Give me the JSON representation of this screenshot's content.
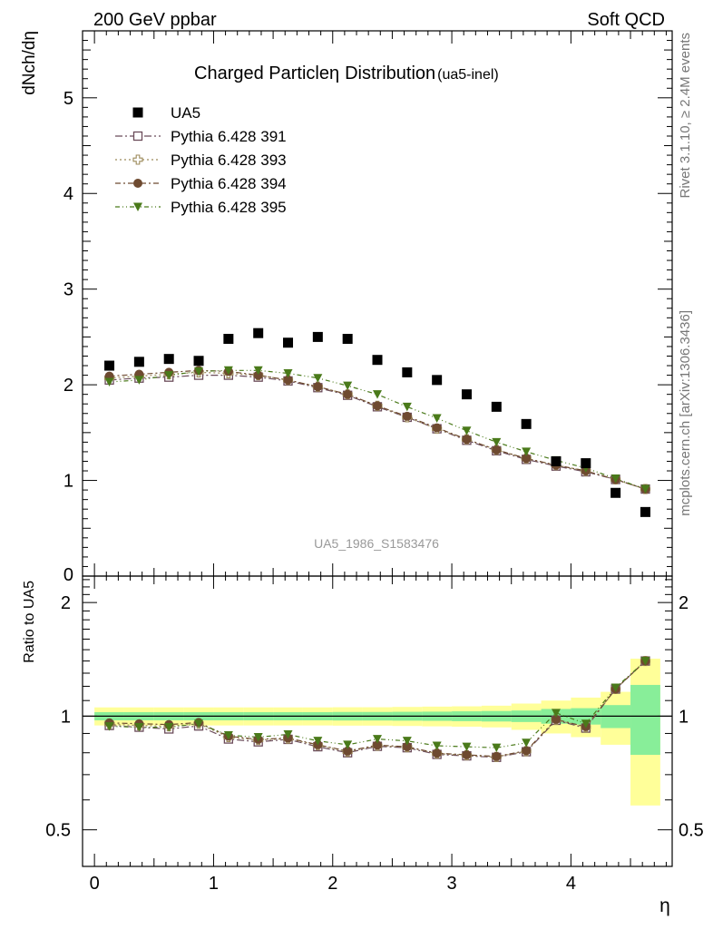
{
  "header": {
    "left": "200 GeV ppbar",
    "right": "Soft QCD",
    "side_top": "Rivet 3.1.10, ≥ 2.4M events",
    "side_bottom": "mcplots.cern.ch [arXiv:1306.3436]"
  },
  "chart_data": {
    "type": "scatter",
    "title": "Charged Particle",
    "title_symbol": "η",
    "title_suffix": "Distribution",
    "title_note": "(ua5-inel)",
    "ylabel_main": "dNch/dη",
    "ylabel_ratio": "Ratio to UA5",
    "xlabel": "η",
    "watermark": "UA5_1986_S1583476",
    "xlim": [
      -0.1,
      4.85
    ],
    "ylim_main": [
      0,
      5.7
    ],
    "ylim_ratio": [
      0.4,
      2.35
    ],
    "x_ticks": [
      "0",
      "1",
      "2",
      "3",
      "4"
    ],
    "y_ticks_main": [
      "1",
      "2",
      "3",
      "4",
      "5"
    ],
    "y_ticks_main_zero": "0",
    "y_ticks_ratio": [
      "0.5",
      "1",
      "2"
    ],
    "x": [
      0.125,
      0.375,
      0.625,
      0.875,
      1.125,
      1.375,
      1.625,
      1.875,
      2.125,
      2.375,
      2.625,
      2.875,
      3.125,
      3.375,
      3.625,
      3.875,
      4.125,
      4.375,
      4.625
    ],
    "data": {
      "name": "UA5",
      "color": "#000000",
      "values": [
        2.2,
        2.24,
        2.27,
        2.25,
        2.48,
        2.54,
        2.44,
        2.5,
        2.48,
        2.26,
        2.13,
        2.05,
        1.9,
        1.77,
        1.59,
        1.2,
        1.18,
        0.87,
        0.67
      ]
    },
    "band_edges": [
      0.0,
      0.25,
      0.5,
      0.75,
      1.0,
      1.25,
      1.5,
      1.75,
      2.0,
      2.25,
      2.5,
      2.75,
      3.0,
      3.25,
      3.5,
      3.75,
      4.0,
      4.25,
      4.5,
      4.75
    ],
    "band_inner": [
      0.025,
      0.025,
      0.025,
      0.025,
      0.025,
      0.025,
      0.025,
      0.025,
      0.026,
      0.026,
      0.027,
      0.028,
      0.03,
      0.032,
      0.035,
      0.045,
      0.05,
      0.07,
      0.21
    ],
    "band_outer": [
      0.055,
      0.055,
      0.055,
      0.055,
      0.055,
      0.055,
      0.055,
      0.055,
      0.056,
      0.056,
      0.058,
      0.06,
      0.062,
      0.066,
      0.08,
      0.1,
      0.12,
      0.16,
      0.42
    ],
    "series": [
      {
        "name": "Pythia 6.428 391",
        "color": "#6b4c5a",
        "marker": "open-square",
        "dash": "8,3,2,3",
        "values": [
          2.05,
          2.07,
          2.08,
          2.1,
          2.1,
          2.08,
          2.04,
          1.97,
          1.89,
          1.77,
          1.66,
          1.54,
          1.42,
          1.31,
          1.22,
          1.15,
          1.09,
          1.01,
          0.91
        ],
        "ratio": [
          0.945,
          0.935,
          0.925,
          0.942,
          0.87,
          0.855,
          0.868,
          0.83,
          0.8,
          0.832,
          0.825,
          0.792,
          0.785,
          0.778,
          0.805,
          0.975,
          0.93,
          1.18,
          1.4
        ]
      },
      {
        "name": "Pythia 6.428 393",
        "color": "#9c8a5a",
        "marker": "open-cross",
        "dash": "2,3",
        "values": [
          2.07,
          2.09,
          2.11,
          2.13,
          2.12,
          2.1,
          2.05,
          1.98,
          1.9,
          1.78,
          1.66,
          1.54,
          1.43,
          1.32,
          1.23,
          1.16,
          1.1,
          1.01,
          0.91
        ],
        "ratio": [
          0.952,
          0.945,
          0.94,
          0.955,
          0.88,
          0.865,
          0.872,
          0.838,
          0.805,
          0.835,
          0.828,
          0.796,
          0.788,
          0.78,
          0.808,
          0.978,
          0.935,
          1.18,
          1.4
        ]
      },
      {
        "name": "Pythia 6.428 394",
        "color": "#6e4a30",
        "marker": "filled-circle",
        "dash": "6,3,2,3",
        "values": [
          2.09,
          2.11,
          2.13,
          2.15,
          2.14,
          2.1,
          2.05,
          1.98,
          1.9,
          1.78,
          1.67,
          1.55,
          1.43,
          1.32,
          1.23,
          1.16,
          1.1,
          1.01,
          0.91
        ],
        "ratio": [
          0.96,
          0.955,
          0.95,
          0.962,
          0.885,
          0.868,
          0.875,
          0.84,
          0.808,
          0.838,
          0.83,
          0.798,
          0.79,
          0.782,
          0.81,
          0.98,
          0.938,
          1.18,
          1.4
        ]
      },
      {
        "name": "Pythia 6.428 395",
        "color": "#4a7a1a",
        "marker": "filled-triangle-down",
        "dash": "5,3,1,3,1,3",
        "values": [
          2.03,
          2.05,
          2.1,
          2.14,
          2.15,
          2.15,
          2.12,
          2.07,
          1.99,
          1.9,
          1.77,
          1.65,
          1.52,
          1.4,
          1.3,
          1.21,
          1.13,
          1.02,
          0.91
        ],
        "ratio": [
          0.94,
          0.935,
          0.935,
          0.955,
          0.89,
          0.88,
          0.895,
          0.86,
          0.84,
          0.87,
          0.86,
          0.835,
          0.83,
          0.825,
          0.85,
          1.02,
          0.955,
          1.19,
          1.4
        ]
      }
    ]
  }
}
